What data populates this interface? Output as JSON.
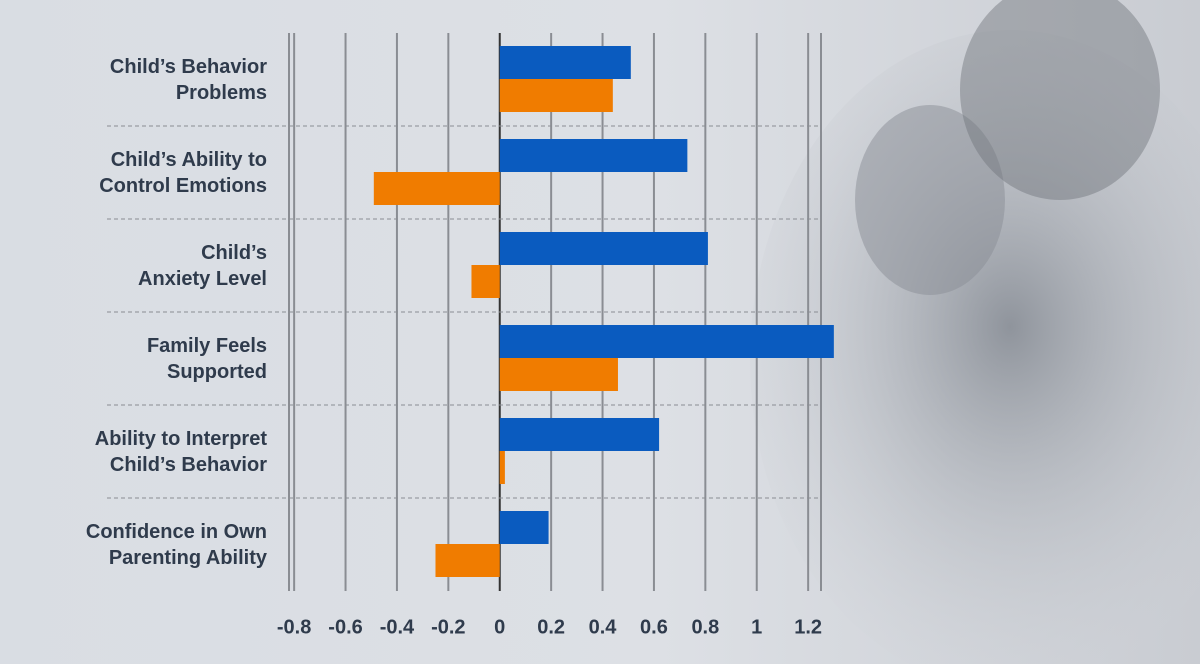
{
  "chart_data": {
    "type": "barh",
    "categories": [
      "Child’s Behavior\nProblems",
      "Child’s Ability to\nControl Emotions",
      "Child’s\nAnxiety Level",
      "Family Feels\nSupported",
      "Ability to Interpret\nChild’s Behavior",
      "Confidence in Own\nParenting Ability"
    ],
    "series": [
      {
        "color": "#0a5bbf",
        "values": [
          0.51,
          0.73,
          0.81,
          1.3,
          0.62,
          0.19
        ]
      },
      {
        "color": "#f07c00",
        "values": [
          0.44,
          -0.49,
          -0.11,
          0.46,
          0.02,
          -0.25
        ]
      }
    ],
    "xlim": [
      -0.82,
      1.25
    ],
    "xticks": [
      -0.8,
      -0.6,
      -0.4,
      -0.2,
      0,
      0.2,
      0.4,
      0.6,
      0.8,
      1,
      1.2
    ],
    "grid": true
  }
}
